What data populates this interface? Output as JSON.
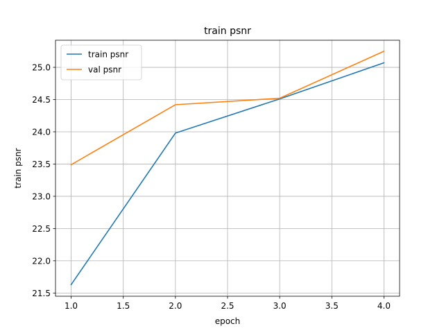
{
  "chart_data": {
    "type": "line",
    "title": "train psnr",
    "xlabel": "epoch",
    "ylabel": "train psnr",
    "xlim": [
      0.85,
      4.15
    ],
    "ylim": [
      21.45,
      25.42
    ],
    "xticks": [
      1.0,
      1.5,
      2.0,
      2.5,
      3.0,
      3.5,
      4.0
    ],
    "xtick_labels": [
      "1.0",
      "1.5",
      "2.0",
      "2.5",
      "3.0",
      "3.5",
      "4.0"
    ],
    "yticks": [
      21.5,
      22.0,
      22.5,
      23.0,
      23.5,
      24.0,
      24.5,
      25.0
    ],
    "ytick_labels": [
      "21.5",
      "22.0",
      "22.5",
      "23.0",
      "23.5",
      "24.0",
      "24.5",
      "25.0"
    ],
    "grid": true,
    "legend_position": "top-left",
    "x": [
      1,
      2,
      3,
      4
    ],
    "series": [
      {
        "name": "train psnr",
        "color": "#1f77b4",
        "values": [
          21.63,
          23.98,
          24.51,
          25.07
        ]
      },
      {
        "name": "val psnr",
        "color": "#ff7f0e",
        "values": [
          23.49,
          24.42,
          24.52,
          25.25
        ]
      }
    ]
  }
}
